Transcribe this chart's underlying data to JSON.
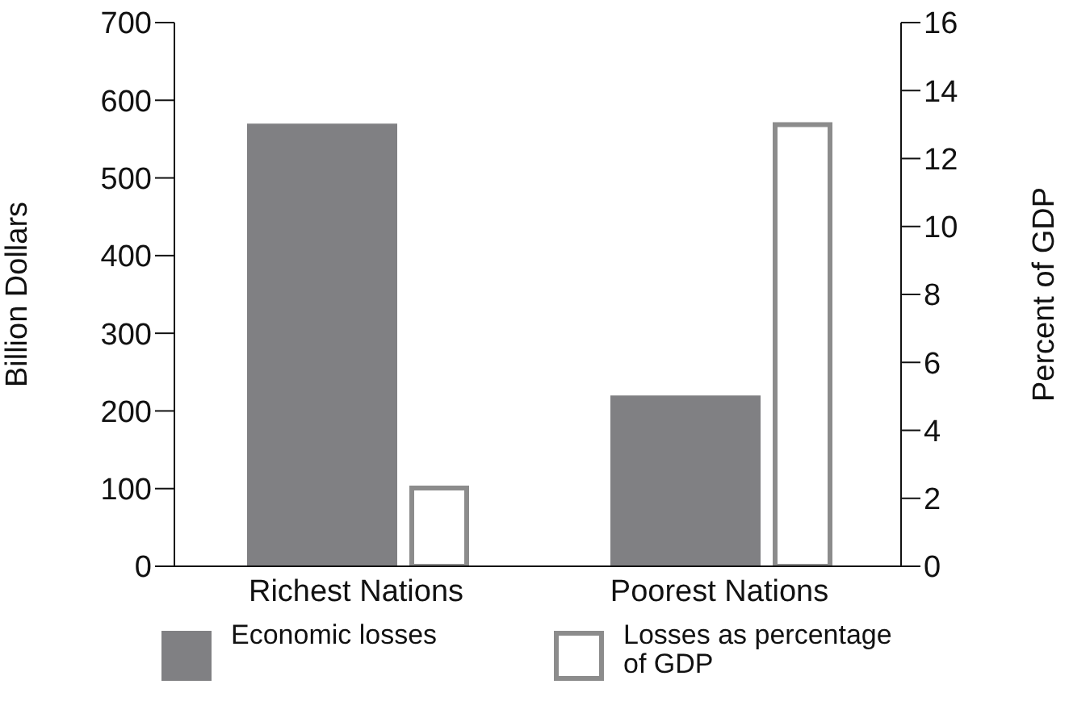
{
  "chart_data": {
    "type": "bar",
    "categories": [
      "Richest Nations",
      "Poorest Nations"
    ],
    "ylabel": "Billion Dollars",
    "y2label": "Percent of GDP",
    "series": [
      {
        "name": "Economic losses",
        "color": "#808083",
        "values": [
          570,
          220
        ]
      },
      {
        "name": "Losses as percentage of GDP",
        "color": "#8c8c8c",
        "values": [
          2.3,
          13
        ],
        "axis": "y2"
      }
    ],
    "ylim": [
      0,
      700
    ],
    "yticks": [
      0,
      100,
      200,
      300,
      400,
      500,
      600,
      700
    ],
    "y2lim": [
      0,
      16
    ],
    "y2ticks": [
      0,
      2,
      4,
      6,
      8,
      10,
      12,
      14,
      16
    ],
    "legend": "bottom"
  }
}
